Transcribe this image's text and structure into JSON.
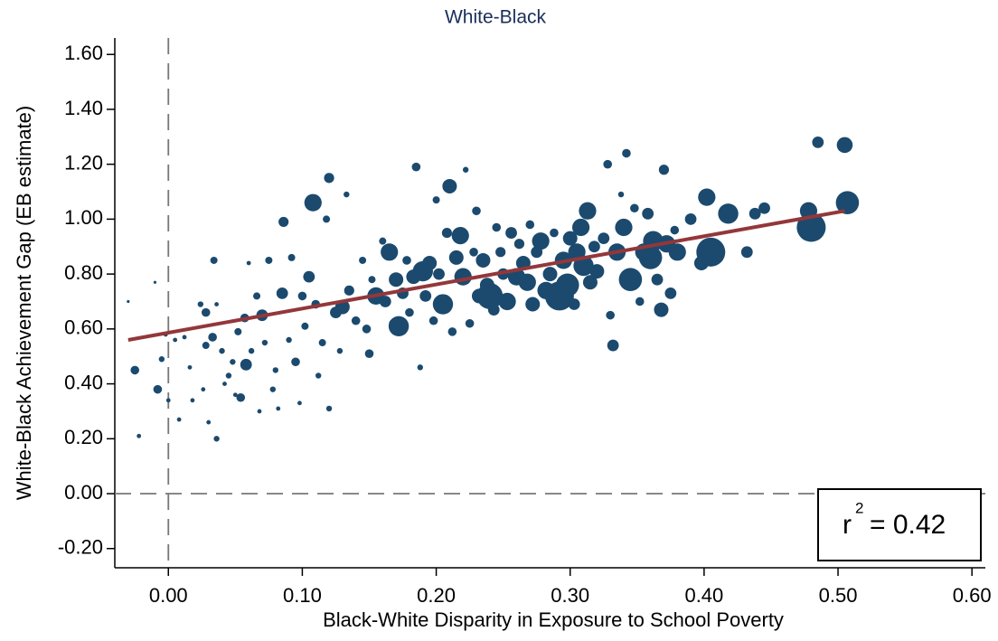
{
  "chart_data": {
    "type": "scatter",
    "title": "White-Black",
    "x_label": "Black-White Disparity in Exposure to School Poverty",
    "y_label": "White-Black Achievement Gap (EB estimate)",
    "xlim": [
      -0.04,
      0.61
    ],
    "ylim": [
      -0.27,
      1.66
    ],
    "xticks": [
      {
        "value": 0,
        "label": "0.00"
      },
      {
        "value": 0.1,
        "label": "0.10"
      },
      {
        "value": 0.2,
        "label": "0.20"
      },
      {
        "value": 0.3,
        "label": "0.30"
      },
      {
        "value": 0.4,
        "label": "0.40"
      },
      {
        "value": 0.5,
        "label": "0.50"
      },
      {
        "value": 0.6,
        "label": "0.60"
      }
    ],
    "yticks": [
      {
        "value": -0.2,
        "label": "-0.20"
      },
      {
        "value": 0,
        "label": "0.00"
      },
      {
        "value": 0.2,
        "label": "0.20"
      },
      {
        "value": 0.4,
        "label": "0.40"
      },
      {
        "value": 0.6,
        "label": "0.60"
      },
      {
        "value": 0.8,
        "label": "0.80"
      },
      {
        "value": 1.0,
        "label": "1.00"
      },
      {
        "value": 1.2,
        "label": "1.20"
      },
      {
        "value": 1.4,
        "label": "1.40"
      },
      {
        "value": 1.6,
        "label": "1.60"
      }
    ],
    "reference_lines": {
      "x": 0,
      "y": 0
    },
    "fit_line": {
      "color": "#93373a",
      "x": [
        -0.03,
        0.505
      ],
      "y": [
        0.56,
        1.03
      ]
    },
    "annotation": {
      "label": "r",
      "exponent": "2",
      "text": "= 0.42"
    },
    "series": [
      {
        "color": "#1b4a6e",
        "x": [
          -0.03,
          -0.025,
          -0.022,
          -0.01,
          -0.008,
          -0.005,
          -0.002,
          0.0,
          0.005,
          0.008,
          0.012,
          0.016,
          0.018,
          0.024,
          0.026,
          0.028,
          0.028,
          0.03,
          0.033,
          0.034,
          0.036,
          0.036,
          0.04,
          0.042,
          0.045,
          0.048,
          0.05,
          0.052,
          0.054,
          0.057,
          0.058,
          0.06,
          0.062,
          0.066,
          0.068,
          0.07,
          0.072,
          0.075,
          0.078,
          0.08,
          0.082,
          0.085,
          0.086,
          0.09,
          0.092,
          0.095,
          0.098,
          0.1,
          0.102,
          0.105,
          0.108,
          0.11,
          0.112,
          0.115,
          0.118,
          0.12,
          0.12,
          0.125,
          0.128,
          0.13,
          0.133,
          0.135,
          0.14,
          0.145,
          0.148,
          0.15,
          0.152,
          0.155,
          0.16,
          0.162,
          0.165,
          0.168,
          0.17,
          0.172,
          0.175,
          0.178,
          0.18,
          0.183,
          0.185,
          0.188,
          0.19,
          0.192,
          0.195,
          0.198,
          0.2,
          0.202,
          0.205,
          0.208,
          0.21,
          0.212,
          0.215,
          0.218,
          0.22,
          0.222,
          0.225,
          0.228,
          0.23,
          0.232,
          0.235,
          0.238,
          0.24,
          0.243,
          0.245,
          0.248,
          0.25,
          0.253,
          0.256,
          0.26,
          0.262,
          0.265,
          0.268,
          0.27,
          0.272,
          0.275,
          0.278,
          0.282,
          0.285,
          0.288,
          0.292,
          0.295,
          0.298,
          0.3,
          0.303,
          0.305,
          0.308,
          0.31,
          0.313,
          0.315,
          0.318,
          0.32,
          0.325,
          0.328,
          0.33,
          0.332,
          0.335,
          0.338,
          0.34,
          0.342,
          0.345,
          0.348,
          0.352,
          0.355,
          0.358,
          0.36,
          0.362,
          0.365,
          0.368,
          0.37,
          0.372,
          0.375,
          0.378,
          0.38,
          0.39,
          0.398,
          0.402,
          0.405,
          0.412,
          0.418,
          0.432,
          0.438,
          0.445,
          0.478,
          0.48,
          0.485,
          0.505,
          0.507
        ],
        "values": [
          0.7,
          0.45,
          0.21,
          0.77,
          0.38,
          0.49,
          0.58,
          0.34,
          0.56,
          0.27,
          0.57,
          0.46,
          0.34,
          0.69,
          0.38,
          0.54,
          0.66,
          0.26,
          0.57,
          0.85,
          0.69,
          0.2,
          0.52,
          0.4,
          0.43,
          0.48,
          0.36,
          0.59,
          0.35,
          0.64,
          0.47,
          0.84,
          0.52,
          0.72,
          0.3,
          0.65,
          0.55,
          0.85,
          0.38,
          0.45,
          0.31,
          0.73,
          0.99,
          0.56,
          0.86,
          0.48,
          0.33,
          0.72,
          0.61,
          0.79,
          1.06,
          0.69,
          0.43,
          0.55,
          1.0,
          1.15,
          0.31,
          0.66,
          0.52,
          0.68,
          1.09,
          0.74,
          0.63,
          0.85,
          0.6,
          0.51,
          0.78,
          0.72,
          0.92,
          0.7,
          0.88,
          0.62,
          0.78,
          0.61,
          0.73,
          0.85,
          0.66,
          0.79,
          1.19,
          0.46,
          0.81,
          0.72,
          0.84,
          0.63,
          1.07,
          0.8,
          0.69,
          0.95,
          1.12,
          0.59,
          0.86,
          0.94,
          0.79,
          1.18,
          0.62,
          0.88,
          1.03,
          0.72,
          0.85,
          0.76,
          0.72,
          0.67,
          0.97,
          0.88,
          0.8,
          0.7,
          0.95,
          0.79,
          0.91,
          0.84,
          0.77,
          0.98,
          0.69,
          0.88,
          0.92,
          0.74,
          0.8,
          0.95,
          0.72,
          0.85,
          0.76,
          0.93,
          0.69,
          0.88,
          0.97,
          0.83,
          1.03,
          0.77,
          0.9,
          0.81,
          0.93,
          1.2,
          0.65,
          0.54,
          0.88,
          1.09,
          0.97,
          1.24,
          0.78,
          1.04,
          0.7,
          0.88,
          1.02,
          0.86,
          0.92,
          0.78,
          0.67,
          1.18,
          0.91,
          0.73,
          0.96,
          0.88,
          1.0,
          0.84,
          1.08,
          0.88,
          0.88,
          1.02,
          0.88,
          1.02,
          1.04,
          1.03,
          0.97,
          1.28,
          1.27,
          1.06
        ],
        "sizes": [
          1,
          3,
          1.5,
          1,
          3,
          2,
          1.5,
          1.5,
          1.5,
          1.5,
          1.5,
          1.5,
          1.5,
          2,
          1.5,
          2.5,
          3,
          1.5,
          3,
          2.5,
          1.5,
          2,
          2,
          1.5,
          2,
          2,
          1.5,
          2.5,
          3,
          3,
          4,
          1.5,
          2,
          2.5,
          1.5,
          4,
          2,
          2.5,
          2,
          2,
          1.5,
          4,
          3.5,
          2,
          2.5,
          3,
          1.5,
          3,
          2.5,
          4,
          6,
          3,
          2,
          2.5,
          2.5,
          3.5,
          2,
          4,
          2,
          5,
          2,
          3.5,
          3,
          2.5,
          3,
          3,
          2.5,
          6,
          2.5,
          4,
          6,
          3,
          5,
          7,
          4,
          3,
          3,
          5,
          3,
          2,
          7,
          4,
          5,
          3,
          2.5,
          4,
          7,
          3.5,
          5,
          3,
          5,
          6,
          6,
          2,
          3,
          3,
          3,
          5,
          5,
          5,
          9,
          4,
          3,
          3.5,
          4,
          6,
          4,
          6,
          3.5,
          5,
          6,
          3,
          5,
          4,
          6,
          6,
          5,
          3,
          10,
          6,
          8,
          5,
          4,
          6,
          6,
          7,
          6,
          5,
          4,
          5,
          4,
          3,
          3,
          4,
          6,
          2,
          6,
          3,
          8,
          3,
          3,
          6,
          4,
          8,
          7,
          4,
          5,
          3.5,
          6,
          4,
          3,
          6,
          4,
          5,
          6,
          10,
          3,
          7,
          4,
          4,
          4,
          6,
          10,
          4,
          5.5,
          8
        ]
      }
    ]
  }
}
